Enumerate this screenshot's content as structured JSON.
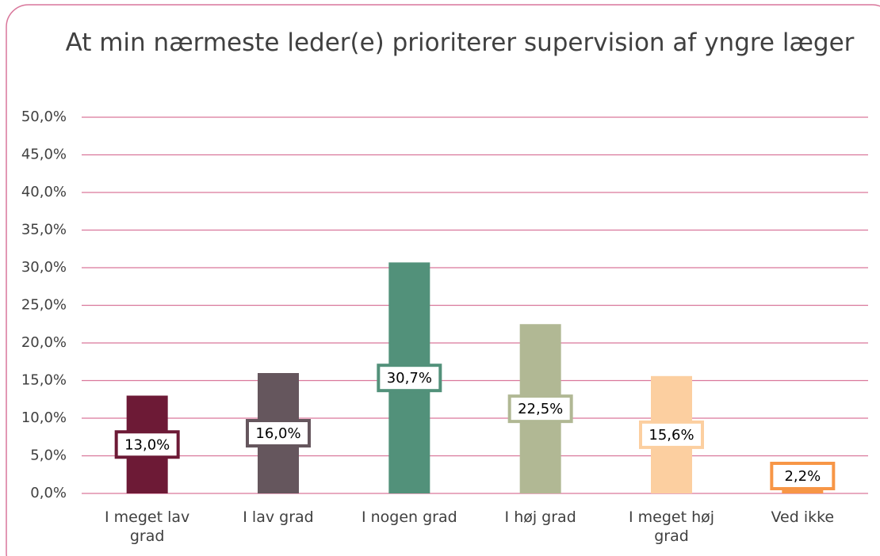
{
  "chart_data": {
    "type": "bar",
    "title": "At min nærmeste leder(e) prioriterer supervision af yngre læger",
    "categories": [
      "I meget lav grad",
      "I lav grad",
      "I nogen grad",
      "I høj grad",
      "I meget høj grad",
      "Ved ikke"
    ],
    "values": [
      13.0,
      16.0,
      30.7,
      22.5,
      15.6,
      2.2
    ],
    "value_labels": [
      "13,0%",
      "16,0%",
      "30,7%",
      "22,5%",
      "15,6%",
      "2,2%"
    ],
    "colors": [
      "#6d1a36",
      "#65565d",
      "#52917a",
      "#b1b894",
      "#fccfa0",
      "#f79646"
    ],
    "ylim": [
      0,
      50
    ],
    "yticks": [
      {
        "value": 0,
        "label": "0,0%"
      },
      {
        "value": 5,
        "label": "5,0%"
      },
      {
        "value": 10,
        "label": "10,0%"
      },
      {
        "value": 15,
        "label": "15,0%"
      },
      {
        "value": 20,
        "label": "20,0%"
      },
      {
        "value": 25,
        "label": "25,0%"
      },
      {
        "value": 30,
        "label": "30,0%"
      },
      {
        "value": 35,
        "label": "35,0%"
      },
      {
        "value": 40,
        "label": "40,0%"
      },
      {
        "value": 45,
        "label": "45,0%"
      },
      {
        "value": 50,
        "label": "50,0%"
      }
    ],
    "grid": true
  }
}
